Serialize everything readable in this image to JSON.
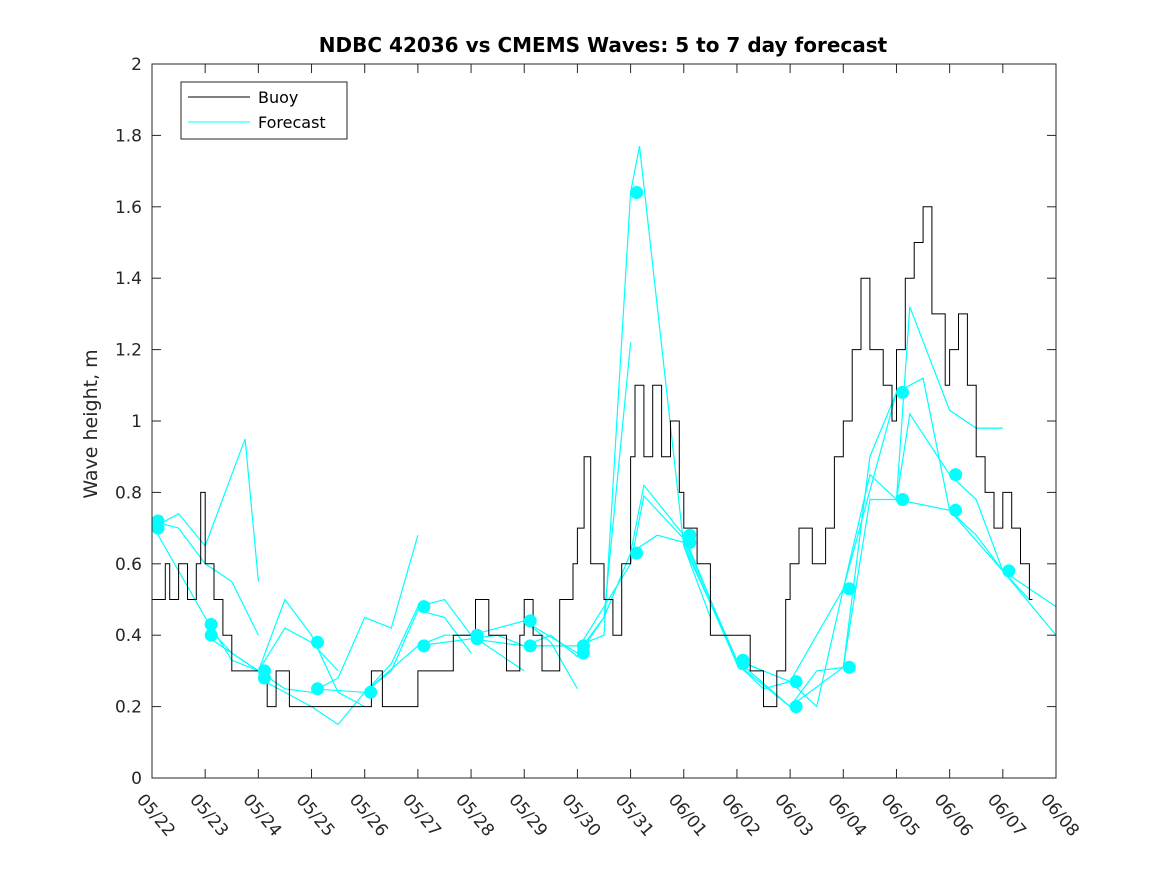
{
  "chart_data": {
    "type": "line",
    "title": "NDBC 42036 vs CMEMS Waves: 5 to 7 day forecast",
    "xlabel": "",
    "ylabel": "Wave height, m",
    "x_axis": {
      "range": [
        "05/22",
        "06/08"
      ],
      "tick_labels": [
        "05/22",
        "05/23",
        "05/24",
        "05/25",
        "05/26",
        "05/27",
        "05/28",
        "05/29",
        "05/30",
        "05/31",
        "06/01",
        "06/02",
        "06/03",
        "06/04",
        "06/05",
        "06/06",
        "06/07",
        "06/08"
      ]
    },
    "ylim": [
      0,
      2
    ],
    "y_ticks": [
      0,
      0.2,
      0.4,
      0.6,
      0.8,
      1,
      1.2,
      1.4,
      1.6,
      1.8,
      2
    ],
    "y_tick_labels": [
      "0",
      "0.2",
      "0.4",
      "0.6",
      "0.8",
      "1",
      "1.2",
      "1.4",
      "1.6",
      "1.8",
      "2"
    ],
    "grid": false,
    "legend": {
      "placement": "top-left",
      "entries": [
        "Buoy",
        "Forecast"
      ]
    },
    "colors": {
      "buoy": "#000000",
      "forecast": "#00ffff"
    },
    "buoy": {
      "name": "Buoy",
      "points": [
        [
          "05/22 00:00",
          0.5
        ],
        [
          "05/22 04:00",
          0.5
        ],
        [
          "05/22 06:00",
          0.6
        ],
        [
          "05/22 08:00",
          0.5
        ],
        [
          "05/22 12:00",
          0.6
        ],
        [
          "05/22 16:00",
          0.5
        ],
        [
          "05/22 20:00",
          0.6
        ],
        [
          "05/22 22:00",
          0.8
        ],
        [
          "05/23 00:00",
          0.6
        ],
        [
          "05/23 04:00",
          0.5
        ],
        [
          "05/23 08:00",
          0.4
        ],
        [
          "05/23 12:00",
          0.3
        ],
        [
          "05/23 20:00",
          0.3
        ],
        [
          "05/24 00:00",
          0.3
        ],
        [
          "05/24 04:00",
          0.2
        ],
        [
          "05/24 08:00",
          0.3
        ],
        [
          "05/24 14:00",
          0.2
        ],
        [
          "05/25 00:00",
          0.2
        ],
        [
          "05/26 00:00",
          0.2
        ],
        [
          "05/26 03:00",
          0.3
        ],
        [
          "05/26 08:00",
          0.2
        ],
        [
          "05/27 00:00",
          0.3
        ],
        [
          "05/27 12:00",
          0.3
        ],
        [
          "05/27 16:00",
          0.4
        ],
        [
          "05/28 00:00",
          0.4
        ],
        [
          "05/28 02:00",
          0.5
        ],
        [
          "05/28 08:00",
          0.4
        ],
        [
          "05/28 16:00",
          0.3
        ],
        [
          "05/28 22:00",
          0.4
        ],
        [
          "05/29 00:00",
          0.5
        ],
        [
          "05/29 04:00",
          0.4
        ],
        [
          "05/29 08:00",
          0.3
        ],
        [
          "05/29 16:00",
          0.5
        ],
        [
          "05/29 22:00",
          0.6
        ],
        [
          "05/30 00:00",
          0.7
        ],
        [
          "05/30 03:00",
          0.9
        ],
        [
          "05/30 06:00",
          0.6
        ],
        [
          "05/30 12:00",
          0.5
        ],
        [
          "05/30 16:00",
          0.4
        ],
        [
          "05/30 20:00",
          0.6
        ],
        [
          "05/31 00:00",
          0.9
        ],
        [
          "05/31 02:00",
          1.1
        ],
        [
          "05/31 06:00",
          0.9
        ],
        [
          "05/31 10:00",
          1.1
        ],
        [
          "05/31 14:00",
          0.9
        ],
        [
          "05/31 18:00",
          1.0
        ],
        [
          "05/31 22:00",
          0.8
        ],
        [
          "06/01 00:00",
          0.7
        ],
        [
          "06/01 06:00",
          0.6
        ],
        [
          "06/01 12:00",
          0.4
        ],
        [
          "06/01 20:00",
          0.4
        ],
        [
          "06/02 00:00",
          0.4
        ],
        [
          "06/02 06:00",
          0.3
        ],
        [
          "06/02 12:00",
          0.2
        ],
        [
          "06/02 18:00",
          0.3
        ],
        [
          "06/02 22:00",
          0.5
        ],
        [
          "06/03 00:00",
          0.6
        ],
        [
          "06/03 04:00",
          0.7
        ],
        [
          "06/03 10:00",
          0.6
        ],
        [
          "06/03 16:00",
          0.7
        ],
        [
          "06/03 20:00",
          0.9
        ],
        [
          "06/04 00:00",
          1.0
        ],
        [
          "06/04 04:00",
          1.2
        ],
        [
          "06/04 08:00",
          1.4
        ],
        [
          "06/04 12:00",
          1.2
        ],
        [
          "06/04 18:00",
          1.1
        ],
        [
          "06/04 22:00",
          1.0
        ],
        [
          "06/05 00:00",
          1.2
        ],
        [
          "06/05 04:00",
          1.4
        ],
        [
          "06/05 08:00",
          1.5
        ],
        [
          "06/05 12:00",
          1.6
        ],
        [
          "06/05 16:00",
          1.3
        ],
        [
          "06/05 22:00",
          1.1
        ],
        [
          "06/06 00:00",
          1.2
        ],
        [
          "06/06 04:00",
          1.3
        ],
        [
          "06/06 08:00",
          1.1
        ],
        [
          "06/06 12:00",
          0.9
        ],
        [
          "06/06 16:00",
          0.8
        ],
        [
          "06/06 20:00",
          0.7
        ],
        [
          "06/07 00:00",
          0.8
        ],
        [
          "06/07 04:00",
          0.7
        ],
        [
          "06/07 08:00",
          0.6
        ],
        [
          "06/07 12:00",
          0.5
        ]
      ]
    },
    "forecast_runs": [
      {
        "name": "Forecast",
        "points": [
          [
            "05/22 00:00",
            0.7
          ],
          [
            "05/22 12:00",
            0.74
          ],
          [
            "05/23 00:00",
            0.65
          ],
          [
            "05/23 12:00",
            0.85
          ],
          [
            "05/23 18:00",
            0.95
          ],
          [
            "05/24 00:00",
            0.55
          ]
        ]
      },
      {
        "name": "Forecast",
        "points": [
          [
            "05/22 00:00",
            0.72
          ],
          [
            "05/22 12:00",
            0.7
          ],
          [
            "05/23 00:00",
            0.6
          ],
          [
            "05/23 12:00",
            0.55
          ],
          [
            "05/24 00:00",
            0.4
          ]
        ]
      },
      {
        "name": "Forecast",
        "points": [
          [
            "05/22 00:00",
            0.71
          ],
          [
            "05/23 00:00",
            0.45
          ],
          [
            "05/23 12:00",
            0.33
          ],
          [
            "05/24 00:00",
            0.3
          ],
          [
            "05/24 12:00",
            0.42
          ],
          [
            "05/25 00:00",
            0.38
          ],
          [
            "05/25 12:00",
            0.3
          ]
        ]
      },
      {
        "name": "Forecast",
        "points": [
          [
            "05/23 00:00",
            0.43
          ],
          [
            "05/23 12:00",
            0.35
          ],
          [
            "05/24 00:00",
            0.3
          ],
          [
            "05/24 12:00",
            0.5
          ],
          [
            "05/25 00:00",
            0.4
          ],
          [
            "05/25 12:00",
            0.24
          ],
          [
            "05/26 00:00",
            0.2
          ]
        ]
      },
      {
        "name": "Forecast",
        "points": [
          [
            "05/23 00:00",
            0.4
          ],
          [
            "05/24 00:00",
            0.3
          ],
          [
            "05/24 12:00",
            0.25
          ],
          [
            "05/25 00:00",
            0.24
          ],
          [
            "05/25 12:00",
            0.28
          ],
          [
            "05/26 00:00",
            0.45
          ],
          [
            "05/26 12:00",
            0.42
          ],
          [
            "05/27 00:00",
            0.68
          ]
        ]
      },
      {
        "name": "Forecast",
        "points": [
          [
            "05/24 00:00",
            0.28
          ],
          [
            "05/25 00:00",
            0.2
          ],
          [
            "05/25 12:00",
            0.15
          ],
          [
            "05/26 00:00",
            0.24
          ],
          [
            "05/26 12:00",
            0.3
          ],
          [
            "05/27 00:00",
            0.47
          ],
          [
            "05/27 12:00",
            0.45
          ],
          [
            "05/28 00:00",
            0.35
          ]
        ]
      },
      {
        "name": "Forecast",
        "points": [
          [
            "05/25 00:00",
            0.25
          ],
          [
            "05/26 00:00",
            0.24
          ],
          [
            "05/26 12:00",
            0.32
          ],
          [
            "05/27 00:00",
            0.48
          ],
          [
            "05/27 12:00",
            0.5
          ],
          [
            "05/28 00:00",
            0.4
          ],
          [
            "05/28 12:00",
            0.35
          ],
          [
            "05/29 00:00",
            0.3
          ]
        ]
      },
      {
        "name": "Forecast",
        "points": [
          [
            "05/26 00:00",
            0.24
          ],
          [
            "05/27 00:00",
            0.37
          ],
          [
            "05/27 12:00",
            0.4
          ],
          [
            "05/28 00:00",
            0.4
          ],
          [
            "05/28 12:00",
            0.42
          ],
          [
            "05/29 00:00",
            0.44
          ],
          [
            "05/29 12:00",
            0.38
          ],
          [
            "05/30 00:00",
            0.25
          ]
        ]
      },
      {
        "name": "Forecast",
        "points": [
          [
            "05/27 00:00",
            0.37
          ],
          [
            "05/28 00:00",
            0.39
          ],
          [
            "05/28 12:00",
            0.4
          ],
          [
            "05/29 00:00",
            0.37
          ],
          [
            "05/29 12:00",
            0.4
          ],
          [
            "05/30 00:00",
            0.34
          ],
          [
            "05/30 12:00",
            0.45
          ],
          [
            "05/31 00:00",
            1.22
          ]
        ]
      },
      {
        "name": "Forecast",
        "points": [
          [
            "05/28 00:00",
            0.39
          ],
          [
            "05/29 00:00",
            0.37
          ],
          [
            "05/30 00:00",
            0.37
          ],
          [
            "05/30 12:00",
            0.4
          ],
          [
            "05/31 00:00",
            1.64
          ],
          [
            "05/31 04:00",
            1.77
          ],
          [
            "06/01 00:00",
            0.65
          ],
          [
            "06/01 12:00",
            0.45
          ]
        ]
      },
      {
        "name": "Forecast",
        "points": [
          [
            "05/29 00:00",
            0.44
          ],
          [
            "05/30 00:00",
            0.35
          ],
          [
            "05/30 12:00",
            0.45
          ],
          [
            "05/31 00:00",
            0.63
          ],
          [
            "05/31 06:00",
            0.82
          ],
          [
            "06/01 00:00",
            0.68
          ],
          [
            "06/01 12:00",
            0.5
          ]
        ]
      },
      {
        "name": "Forecast",
        "points": [
          [
            "05/30 00:00",
            0.36
          ],
          [
            "05/31 00:00",
            0.6
          ],
          [
            "05/31 06:00",
            0.79
          ],
          [
            "06/01 00:00",
            0.67
          ],
          [
            "06/02 00:00",
            0.33
          ],
          [
            "06/02 12:00",
            0.3
          ]
        ]
      },
      {
        "name": "Forecast",
        "points": [
          [
            "05/31 00:00",
            0.63
          ],
          [
            "05/31 12:00",
            0.68
          ],
          [
            "06/01 00:00",
            0.66
          ],
          [
            "06/02 00:00",
            0.32
          ],
          [
            "06/03 00:00",
            0.2
          ]
        ]
      },
      {
        "name": "Forecast",
        "points": [
          [
            "06/01 00:00",
            0.68
          ],
          [
            "06/02 00:00",
            0.32
          ],
          [
            "06/02 12:00",
            0.25
          ],
          [
            "06/03 00:00",
            0.27
          ],
          [
            "06/03 12:00",
            0.2
          ],
          [
            "06/04 00:00",
            0.53
          ]
        ]
      },
      {
        "name": "Forecast",
        "points": [
          [
            "06/01 00:00",
            0.65
          ],
          [
            "06/02 00:00",
            0.33
          ],
          [
            "06/03 00:00",
            0.2
          ],
          [
            "06/03 12:00",
            0.3
          ],
          [
            "06/04 00:00",
            0.31
          ],
          [
            "06/04 12:00",
            0.9
          ],
          [
            "06/05 00:00",
            1.08
          ]
        ]
      },
      {
        "name": "Forecast",
        "points": [
          [
            "06/02 00:00",
            0.33
          ],
          [
            "06/03 00:00",
            0.27
          ],
          [
            "06/04 00:00",
            0.53
          ],
          [
            "06/04 12:00",
            0.85
          ],
          [
            "06/05 00:00",
            0.78
          ],
          [
            "06/05 06:00",
            1.32
          ],
          [
            "06/06 00:00",
            1.03
          ],
          [
            "06/06 12:00",
            0.98
          ],
          [
            "06/07 00:00",
            0.98
          ]
        ]
      },
      {
        "name": "Forecast",
        "points": [
          [
            "06/03 00:00",
            0.2
          ],
          [
            "06/04 00:00",
            0.31
          ],
          [
            "06/04 12:00",
            0.78
          ],
          [
            "06/05 00:00",
            0.78
          ],
          [
            "06/05 06:00",
            1.02
          ],
          [
            "06/06 00:00",
            0.85
          ],
          [
            "06/06 12:00",
            0.78
          ],
          [
            "06/07 00:00",
            0.58
          ],
          [
            "06/08 00:00",
            0.4
          ]
        ]
      },
      {
        "name": "Forecast",
        "points": [
          [
            "06/04 00:00",
            0.53
          ],
          [
            "06/05 00:00",
            1.08
          ],
          [
            "06/05 12:00",
            1.12
          ],
          [
            "06/06 00:00",
            0.75
          ],
          [
            "06/07 00:00",
            0.58
          ],
          [
            "06/08 00:00",
            0.48
          ]
        ]
      },
      {
        "name": "Forecast",
        "points": [
          [
            "06/05 00:00",
            0.78
          ],
          [
            "06/06 00:00",
            0.75
          ],
          [
            "06/06 12:00",
            0.68
          ],
          [
            "06/07 00:00",
            0.58
          ],
          [
            "06/07 12:00",
            0.5
          ]
        ]
      }
    ],
    "forecast_markers": [
      [
        "05/22 00:00",
        0.72
      ],
      [
        "05/22 00:00",
        0.7
      ],
      [
        "05/23 00:00",
        0.43
      ],
      [
        "05/23 00:00",
        0.4
      ],
      [
        "05/24 00:00",
        0.3
      ],
      [
        "05/24 00:00",
        0.28
      ],
      [
        "05/25 00:00",
        0.38
      ],
      [
        "05/25 00:00",
        0.25
      ],
      [
        "05/26 00:00",
        0.24
      ],
      [
        "05/27 00:00",
        0.48
      ],
      [
        "05/27 00:00",
        0.37
      ],
      [
        "05/28 00:00",
        0.4
      ],
      [
        "05/28 00:00",
        0.39
      ],
      [
        "05/29 00:00",
        0.44
      ],
      [
        "05/29 00:00",
        0.37
      ],
      [
        "05/30 00:00",
        0.37
      ],
      [
        "05/30 00:00",
        0.35
      ],
      [
        "05/31 00:00",
        1.64
      ],
      [
        "05/31 00:00",
        0.63
      ],
      [
        "06/01 00:00",
        0.68
      ],
      [
        "06/01 00:00",
        0.66
      ],
      [
        "06/02 00:00",
        0.33
      ],
      [
        "06/02 00:00",
        0.32
      ],
      [
        "06/03 00:00",
        0.27
      ],
      [
        "06/03 00:00",
        0.2
      ],
      [
        "06/04 00:00",
        0.53
      ],
      [
        "06/04 00:00",
        0.31
      ],
      [
        "06/05 00:00",
        1.08
      ],
      [
        "06/05 00:00",
        0.78
      ],
      [
        "06/06 00:00",
        0.85
      ],
      [
        "06/06 00:00",
        0.75
      ],
      [
        "06/07 00:00",
        0.58
      ]
    ]
  }
}
